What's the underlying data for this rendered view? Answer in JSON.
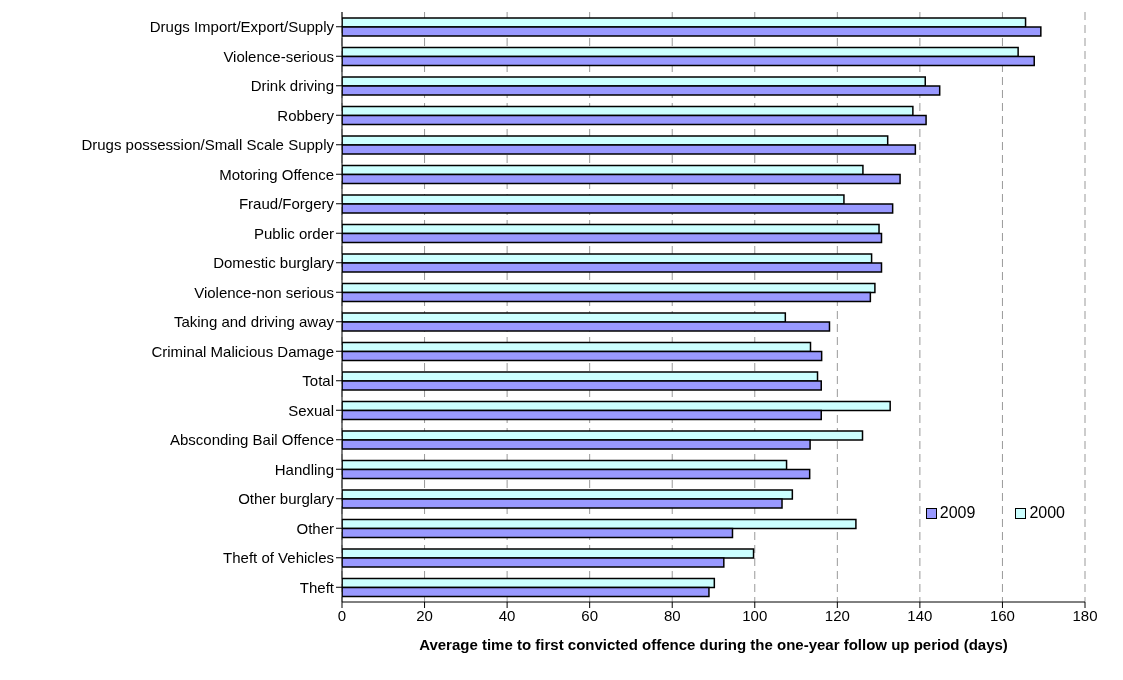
{
  "chart_data": {
    "type": "bar",
    "orientation": "horizontal",
    "xlabel": "Average time to first convicted offence during the one-year follow up period (days)",
    "categories": [
      "Drugs Import/Export/Supply",
      "Violence-serious",
      "Drink driving",
      "Robbery",
      "Drugs possession/Small Scale Supply",
      "Motoring Offence",
      "Fraud/Forgery",
      "Public order",
      "Domestic burglary",
      "Violence-non serious",
      "Taking and driving away",
      "Criminal Malicious Damage",
      "Total",
      "Sexual",
      "Absconding Bail Offence",
      "Handling",
      "Other burglary",
      "Other",
      "Theft of Vehicles",
      "Theft"
    ],
    "series": [
      {
        "name": "2000",
        "color": "#ccffff",
        "values": [
          165.6,
          163.8,
          141.3,
          138.3,
          132.2,
          126.2,
          121.6,
          130.1,
          128.3,
          129.1,
          107.4,
          113.5,
          115.2,
          132.8,
          126.1,
          107.7,
          109.1,
          124.5,
          99.7,
          90.2
        ]
      },
      {
        "name": "2009",
        "color": "#9999ff",
        "values": [
          169.3,
          167.7,
          144.8,
          141.5,
          138.9,
          135.2,
          133.4,
          130.7,
          130.7,
          128.0,
          118.1,
          116.2,
          116.1,
          116.1,
          113.4,
          113.3,
          106.6,
          94.6,
          92.5,
          88.9
        ]
      }
    ],
    "xlim": [
      0,
      180
    ],
    "xticks": [
      0,
      20,
      40,
      60,
      80,
      100,
      120,
      140,
      160,
      180
    ],
    "grid": "x",
    "legend": "bottom right"
  }
}
